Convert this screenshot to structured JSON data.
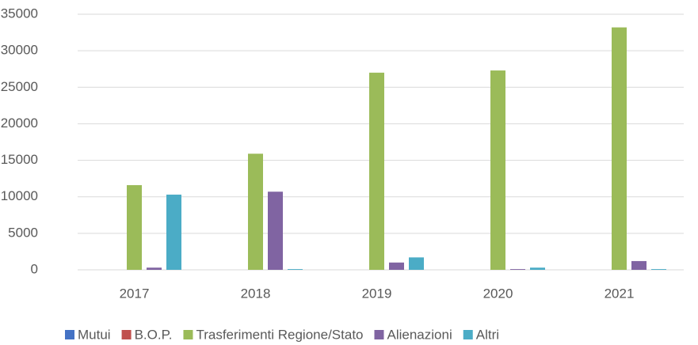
{
  "chart_data": {
    "type": "bar",
    "categories": [
      "2017",
      "2018",
      "2019",
      "2020",
      "2021"
    ],
    "series": [
      {
        "name": "Mutui",
        "color": "#4472c4",
        "values": [
          0,
          0,
          0,
          0,
          0
        ]
      },
      {
        "name": "B.O.P.",
        "color": "#c0504d",
        "values": [
          0,
          0,
          0,
          0,
          0
        ]
      },
      {
        "name": "Trasferimenti Regione/Stato",
        "color": "#9bbb59",
        "values": [
          11600,
          15900,
          27000,
          27300,
          33200
        ]
      },
      {
        "name": "Alienazioni",
        "color": "#8064a2",
        "values": [
          300,
          10700,
          1000,
          100,
          1200
        ]
      },
      {
        "name": "Altri",
        "color": "#4bacc6",
        "values": [
          10300,
          100,
          1700,
          300,
          100
        ]
      }
    ],
    "ylim": [
      0,
      35000
    ],
    "yticks": [
      0,
      5000,
      10000,
      15000,
      20000,
      25000,
      30000,
      35000
    ],
    "grid": true,
    "legend": "bottom"
  }
}
